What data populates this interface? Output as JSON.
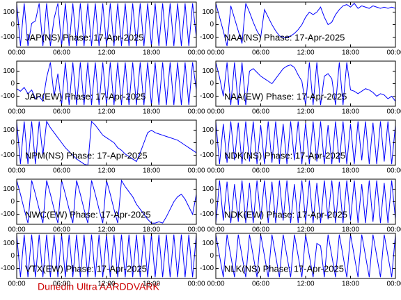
{
  "chart_data": [
    {
      "type": "line",
      "title": "JAP(NS) Phase: 17-Apr-2025",
      "color": "#0000ff",
      "xlim": [
        0,
        24
      ],
      "ylim": [
        -180,
        180
      ],
      "yticks": [
        -100,
        0,
        100
      ],
      "xticks": [
        {
          "value": 0,
          "label": "00:00"
        },
        {
          "value": 6,
          "label": "06:00"
        },
        {
          "value": 12,
          "label": "12:00"
        },
        {
          "value": 18,
          "label": "18:00"
        },
        {
          "value": 24,
          "label": "00:00"
        }
      ],
      "x": [
        0,
        0.5,
        1,
        1.5,
        2,
        2.5,
        3,
        3.5,
        4,
        4.5,
        5,
        5.5,
        6,
        6.5,
        7,
        7.5,
        8,
        8.5,
        9,
        9.5,
        10,
        10.5,
        11,
        11.5,
        12,
        12.5,
        13,
        13.5,
        14,
        14.5,
        15,
        15.5,
        16,
        16.5,
        17,
        17.5,
        18,
        18.5,
        19,
        19.5,
        20,
        20.5,
        21,
        21.5,
        22,
        22.5,
        23,
        23.5,
        24
      ],
      "values": [
        170,
        -170,
        170,
        -170,
        10,
        30,
        170,
        -170,
        170,
        -170,
        50,
        170,
        -170,
        170,
        -170,
        170,
        -170,
        170,
        -170,
        170,
        -170,
        170,
        -170,
        170,
        -170,
        170,
        -170,
        170,
        -170,
        170,
        -170,
        170,
        -170,
        170,
        -170,
        170,
        -170,
        170,
        -170,
        170,
        -170,
        170,
        -170,
        170,
        -170,
        170,
        -170,
        170,
        -100
      ]
    },
    {
      "type": "line",
      "title": "NAA(NS) Phase: 17-Apr-2025",
      "color": "#0000ff",
      "xlim": [
        0,
        24
      ],
      "ylim": [
        -180,
        180
      ],
      "yticks": [
        -100,
        0,
        100
      ],
      "xticks": [
        {
          "value": 0,
          "label": "00:00"
        },
        {
          "value": 6,
          "label": "06:00"
        },
        {
          "value": 12,
          "label": "12:00"
        },
        {
          "value": 18,
          "label": "18:00"
        },
        {
          "value": 24,
          "label": "00:00"
        }
      ],
      "x": [
        0,
        0.5,
        1,
        1.5,
        2,
        2.5,
        3,
        3.5,
        4,
        4.5,
        5,
        5.5,
        6,
        6.5,
        7,
        7.5,
        8,
        8.5,
        9,
        9.5,
        10,
        10.5,
        11,
        11.5,
        12,
        12.5,
        13,
        13.5,
        14,
        14.5,
        15,
        15.5,
        16,
        16.5,
        17,
        17.5,
        18,
        18.5,
        19,
        19.5,
        20,
        20.5,
        21,
        21.5,
        22,
        22.5,
        23,
        23.5,
        24
      ],
      "values": [
        170,
        60,
        -50,
        -170,
        150,
        50,
        -50,
        -150,
        170,
        100,
        20,
        -50,
        -100,
        120,
        60,
        0,
        -50,
        -90,
        -100,
        -100,
        -90,
        -70,
        -40,
        0,
        60,
        100,
        80,
        100,
        140,
        60,
        0,
        20,
        80,
        120,
        150,
        160,
        140,
        170,
        130,
        150,
        140,
        130,
        150,
        140,
        130,
        140,
        130,
        140,
        130
      ]
    },
    {
      "type": "line",
      "title": "JAP(EW) Phase: 17-Apr-2025",
      "color": "#0000ff",
      "xlim": [
        0,
        24
      ],
      "ylim": [
        -180,
        180
      ],
      "yticks": [
        -100,
        0,
        100
      ],
      "xticks": [
        {
          "value": 0,
          "label": "00:00"
        },
        {
          "value": 6,
          "label": "06:00"
        },
        {
          "value": 12,
          "label": "12:00"
        },
        {
          "value": 18,
          "label": "18:00"
        },
        {
          "value": 24,
          "label": "00:00"
        }
      ],
      "x": [
        0,
        0.5,
        1,
        1.5,
        2,
        2.5,
        3,
        3.5,
        4,
        4.5,
        5,
        5.5,
        6,
        6.5,
        7,
        7.5,
        8,
        8.5,
        9,
        9.5,
        10,
        10.5,
        11,
        11.5,
        12,
        12.5,
        13,
        13.5,
        14,
        14.5,
        15,
        15.5,
        16,
        16.5,
        17,
        17.5,
        18,
        18.5,
        19,
        19.5,
        20,
        20.5,
        21,
        21.5,
        22,
        22.5,
        23,
        23.5,
        24
      ],
      "values": [
        -40,
        -60,
        -30,
        -80,
        -50,
        -120,
        -100,
        -140,
        50,
        170,
        -100,
        80,
        -170,
        170,
        -170,
        170,
        -170,
        170,
        -170,
        170,
        -170,
        170,
        -170,
        170,
        -170,
        170,
        -170,
        170,
        -170,
        170,
        -170,
        170,
        -170,
        170,
        -170,
        170,
        -170,
        170,
        -170,
        170,
        -170,
        170,
        -170,
        170,
        -170,
        170,
        -170,
        170,
        -50
      ]
    },
    {
      "type": "line",
      "title": "NAA(EW) Phase: 17-Apr-2025",
      "color": "#0000ff",
      "xlim": [
        0,
        24
      ],
      "ylim": [
        -180,
        180
      ],
      "yticks": [
        -100,
        0,
        100
      ],
      "xticks": [
        {
          "value": 0,
          "label": "00:00"
        },
        {
          "value": 6,
          "label": "06:00"
        },
        {
          "value": 12,
          "label": "12:00"
        },
        {
          "value": 18,
          "label": "18:00"
        },
        {
          "value": 24,
          "label": "00:00"
        }
      ],
      "x": [
        0,
        0.5,
        1,
        1.5,
        2,
        2.5,
        3,
        3.5,
        4,
        4.5,
        5,
        5.5,
        6,
        6.5,
        7,
        7.5,
        8,
        8.5,
        9,
        9.5,
        10,
        10.5,
        11,
        11.5,
        12,
        12.5,
        13,
        13.5,
        14,
        14.5,
        15,
        15.5,
        16,
        16.5,
        17,
        17.5,
        18,
        18.5,
        19,
        19.5,
        20,
        20.5,
        21,
        21.5,
        22,
        22.5,
        23,
        23.5,
        24
      ],
      "values": [
        170,
        50,
        -100,
        170,
        -170,
        170,
        -170,
        170,
        -170,
        100,
        120,
        90,
        60,
        40,
        20,
        0,
        40,
        80,
        120,
        140,
        150,
        130,
        70,
        20,
        -170,
        170,
        -170,
        170,
        -170,
        60,
        80,
        40,
        -170,
        170,
        -170,
        170,
        -50,
        -60,
        -80,
        -60,
        -40,
        -50,
        -70,
        -100,
        -80,
        -90,
        -120,
        -100,
        -140
      ]
    },
    {
      "type": "line",
      "title": "NPM(NS) Phase: 17-Apr-2025",
      "color": "#0000ff",
      "xlim": [
        0,
        24
      ],
      "ylim": [
        -180,
        180
      ],
      "yticks": [
        -100,
        0,
        100
      ],
      "xticks": [
        {
          "value": 0,
          "label": "00:00"
        },
        {
          "value": 6,
          "label": "06:00"
        },
        {
          "value": 12,
          "label": "12:00"
        },
        {
          "value": 18,
          "label": "18:00"
        },
        {
          "value": 24,
          "label": "00:00"
        }
      ],
      "x": [
        0,
        0.5,
        1,
        1.5,
        2,
        2.5,
        3,
        3.5,
        4,
        4.5,
        5,
        5.5,
        6,
        6.5,
        7,
        7.5,
        8,
        8.5,
        9,
        9.5,
        10,
        10.5,
        11,
        11.5,
        12,
        12.5,
        13,
        13.5,
        14,
        14.5,
        15,
        15.5,
        16,
        16.5,
        17,
        17.5,
        18,
        18.5,
        19,
        19.5,
        20,
        20.5,
        21,
        21.5,
        22,
        22.5,
        23,
        23.5,
        24
      ],
      "values": [
        170,
        -170,
        170,
        -170,
        170,
        -170,
        170,
        -100,
        170,
        120,
        80,
        40,
        0,
        -40,
        -70,
        -100,
        -130,
        -150,
        -170,
        -180,
        170,
        140,
        100,
        60,
        40,
        20,
        0,
        -40,
        -60,
        -90,
        -110,
        -130,
        -150,
        -80,
        0,
        80,
        100,
        80,
        70,
        60,
        50,
        40,
        30,
        20,
        0,
        -20,
        -40,
        -60,
        -80
      ]
    },
    {
      "type": "line",
      "title": "NDK(NS) Phase: 17-Apr-2025",
      "color": "#0000ff",
      "xlim": [
        0,
        24
      ],
      "ylim": [
        -180,
        180
      ],
      "yticks": [
        -100,
        0,
        100
      ],
      "xticks": [
        {
          "value": 0,
          "label": "00:00"
        },
        {
          "value": 6,
          "label": "06:00"
        },
        {
          "value": 12,
          "label": "12:00"
        },
        {
          "value": 18,
          "label": "18:00"
        },
        {
          "value": 24,
          "label": "00:00"
        }
      ],
      "x": [
        0,
        0.5,
        1,
        1.5,
        2,
        2.5,
        3,
        3.5,
        4,
        4.5,
        5,
        5.5,
        6,
        6.5,
        7,
        7.5,
        8,
        8.5,
        9,
        9.5,
        10,
        10.5,
        11,
        11.5,
        12,
        12.5,
        13,
        13.5,
        14,
        14.5,
        15,
        15.5,
        16,
        16.5,
        17,
        17.5,
        18,
        18.5,
        19,
        19.5,
        20,
        20.5,
        21,
        21.5,
        22,
        22.5,
        23,
        23.5,
        24
      ],
      "values": [
        170,
        -170,
        150,
        -160,
        170,
        -140,
        160,
        -170,
        170,
        -150,
        170,
        -170,
        140,
        -170,
        170,
        -160,
        170,
        -170,
        150,
        -170,
        170,
        -140,
        170,
        -170,
        160,
        -170,
        170,
        -150,
        170,
        -170,
        140,
        -170,
        170,
        -160,
        170,
        -170,
        150,
        -170,
        170,
        -140,
        170,
        -170,
        160,
        -170,
        170,
        -150,
        170,
        -170,
        140
      ]
    },
    {
      "type": "line",
      "title": "NWC(EW) Phase: 17-Apr-2025",
      "color": "#0000ff",
      "xlim": [
        0,
        24
      ],
      "ylim": [
        -180,
        180
      ],
      "yticks": [
        -100,
        0,
        100
      ],
      "xticks": [
        {
          "value": 0,
          "label": "00:00"
        },
        {
          "value": 6,
          "label": "06:00"
        },
        {
          "value": 12,
          "label": "12:00"
        },
        {
          "value": 18,
          "label": "18:00"
        },
        {
          "value": 24,
          "label": "00:00"
        }
      ],
      "x": [
        0,
        0.5,
        1,
        1.5,
        2,
        2.5,
        3,
        3.5,
        4,
        4.5,
        5,
        5.5,
        6,
        6.5,
        7,
        7.5,
        8,
        8.5,
        9,
        9.5,
        10,
        10.5,
        11,
        11.5,
        12,
        12.5,
        13,
        13.5,
        14,
        14.5,
        15,
        15.5,
        16,
        16.5,
        17,
        17.5,
        18,
        18.5,
        19,
        19.5,
        20,
        20.5,
        21,
        21.5,
        22,
        22.5,
        23,
        23.5,
        24
      ],
      "values": [
        170,
        60,
        -60,
        -170,
        170,
        60,
        -60,
        -170,
        170,
        60,
        -60,
        -170,
        170,
        60,
        -60,
        -170,
        170,
        60,
        -60,
        -170,
        170,
        60,
        -60,
        -170,
        170,
        60,
        -60,
        -170,
        170,
        120,
        80,
        40,
        -20,
        -60,
        -100,
        -140,
        -170,
        -170,
        -160,
        -170,
        -120,
        -60,
        0,
        40,
        60,
        20,
        -40,
        -100,
        60
      ]
    },
    {
      "type": "line",
      "title": "NDK(EW) Phase: 17-Apr-2025",
      "color": "#0000ff",
      "xlim": [
        0,
        24
      ],
      "ylim": [
        -180,
        180
      ],
      "yticks": [
        -100,
        0,
        100
      ],
      "xticks": [
        {
          "value": 0,
          "label": "00:00"
        },
        {
          "value": 6,
          "label": "06:00"
        },
        {
          "value": 12,
          "label": "12:00"
        },
        {
          "value": 18,
          "label": "18:00"
        },
        {
          "value": 24,
          "label": "00:00"
        }
      ],
      "x": [
        0,
        0.5,
        1,
        1.5,
        2,
        2.5,
        3,
        3.5,
        4,
        4.5,
        5,
        5.5,
        6,
        6.5,
        7,
        7.5,
        8,
        8.5,
        9,
        9.5,
        10,
        10.5,
        11,
        11.5,
        12,
        12.5,
        13,
        13.5,
        14,
        14.5,
        15,
        15.5,
        16,
        16.5,
        17,
        17.5,
        18,
        18.5,
        19,
        19.5,
        20,
        20.5,
        21,
        21.5,
        22,
        22.5,
        23,
        23.5,
        24
      ],
      "values": [
        -170,
        170,
        -150,
        160,
        -170,
        140,
        -160,
        170,
        -170,
        150,
        -170,
        170,
        -140,
        170,
        -170,
        160,
        -170,
        170,
        -150,
        170,
        -170,
        140,
        -170,
        170,
        -160,
        170,
        -170,
        150,
        -170,
        170,
        -140,
        170,
        -170,
        160,
        -170,
        170,
        -150,
        170,
        -170,
        140,
        -170,
        170,
        -160,
        170,
        -170,
        150,
        -170,
        170,
        -140
      ]
    },
    {
      "type": "line",
      "title": "VTX(EW) Phase: 17-Apr-2025",
      "color": "#0000ff",
      "xlim": [
        0,
        24
      ],
      "ylim": [
        -180,
        180
      ],
      "yticks": [
        -100,
        0,
        100
      ],
      "xticks": [
        {
          "value": 0,
          "label": "00:00"
        },
        {
          "value": 6,
          "label": "06:00"
        },
        {
          "value": 12,
          "label": "12:00"
        },
        {
          "value": 18,
          "label": "18:00"
        },
        {
          "value": 24,
          "label": "00:00"
        }
      ],
      "x": [
        0,
        0.5,
        1,
        1.5,
        2,
        2.5,
        3,
        3.5,
        4,
        4.5,
        5,
        5.5,
        6,
        6.5,
        7,
        7.5,
        8,
        8.5,
        9,
        9.5,
        10,
        10.5,
        11,
        11.5,
        12,
        12.5,
        13,
        13.5,
        14,
        14.5,
        15,
        15.5,
        16,
        16.5,
        17,
        17.5,
        18,
        18.5,
        19,
        19.5,
        20,
        20.5,
        21,
        21.5,
        22,
        22.5,
        23,
        23.5,
        24
      ],
      "values": [
        170,
        -170,
        170,
        -170,
        170,
        -170,
        170,
        -170,
        170,
        -170,
        170,
        -170,
        170,
        -170,
        170,
        -170,
        170,
        -170,
        170,
        -170,
        170,
        -170,
        170,
        -170,
        170,
        -170,
        170,
        -170,
        170,
        -170,
        170,
        -170,
        170,
        -170,
        170,
        -170,
        170,
        -170,
        170,
        -170,
        170,
        -170,
        170,
        -170,
        170,
        -170,
        170,
        -170,
        170
      ]
    },
    {
      "type": "line",
      "title": "NLK(NS) Phase: 17-Apr-2025",
      "color": "#0000ff",
      "xlim": [
        0,
        24
      ],
      "ylim": [
        -180,
        180
      ],
      "yticks": [
        -100,
        0,
        100
      ],
      "xticks": [
        {
          "value": 0,
          "label": "00:00"
        },
        {
          "value": 6,
          "label": "06:00"
        },
        {
          "value": 12,
          "label": "12:00"
        },
        {
          "value": 18,
          "label": "18:00"
        },
        {
          "value": 24,
          "label": "00:00"
        }
      ],
      "x": [
        0,
        0.5,
        1,
        1.5,
        2,
        2.5,
        3,
        3.5,
        4,
        4.5,
        5,
        5.5,
        6,
        6.5,
        7,
        7.5,
        8,
        8.5,
        9,
        9.5,
        10,
        10.5,
        11,
        11.5,
        12,
        12.5,
        13,
        13.5,
        14,
        14.5,
        15,
        15.5,
        16,
        16.5,
        17,
        17.5,
        18,
        18.5,
        19,
        19.5,
        20,
        20.5,
        21,
        21.5,
        22,
        22.5,
        23,
        23.5,
        24
      ],
      "values": [
        170,
        0,
        -170,
        170,
        0,
        -170,
        170,
        0,
        -170,
        170,
        0,
        -170,
        170,
        0,
        -170,
        170,
        0,
        -170,
        170,
        0,
        -170,
        170,
        0,
        -170,
        170,
        0,
        -170,
        100,
        80,
        -170,
        170,
        0,
        -170,
        170,
        0,
        -170,
        170,
        0,
        -170,
        170,
        0,
        -170,
        170,
        0,
        -170,
        170,
        0,
        -170,
        170
      ]
    }
  ],
  "footer": "Dunedin Ultra AARDDVARK"
}
